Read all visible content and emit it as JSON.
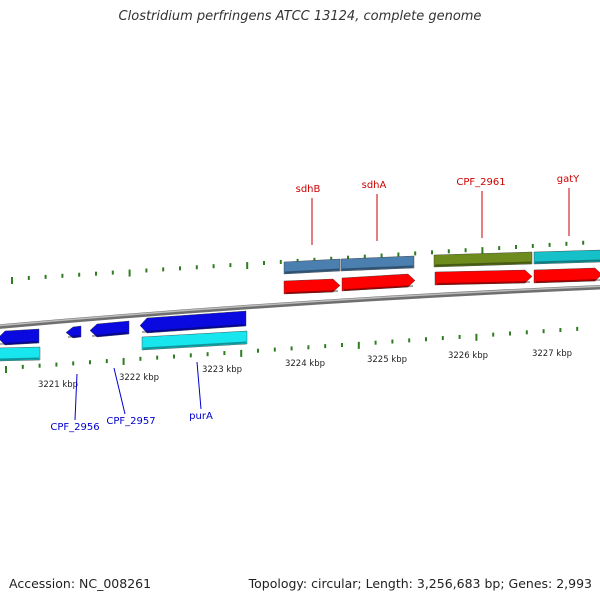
{
  "title": "Clostridium perfringens ATCC 13124, complete genome",
  "footer": {
    "accession": "Accession: NC_008261",
    "summary": "Topology: circular; Length: 3,256,683 bp; Genes: 2,993"
  },
  "colors": {
    "backbone": "#8a8a8a",
    "tick": "#2e7d1f",
    "label_forward": "#cc0000",
    "label_reverse": "#0000cc"
  },
  "position_markers": [
    "3221 kbp",
    "3222 kbp",
    "3223 kbp",
    "3224 kbp",
    "3225 kbp",
    "3226 kbp",
    "3227 kbp"
  ],
  "genes_forward": [
    {
      "name": "sdhB",
      "color": "#4a7fb0"
    },
    {
      "name": "sdhA",
      "color": "#4a7fb0"
    },
    {
      "name": "CPF_2961",
      "color": "#6e8b1e"
    },
    {
      "name": "gatY",
      "color": "#16c0c8"
    }
  ],
  "genes_reverse": [
    {
      "name": "CPF_2956",
      "color": "#0a0ae0"
    },
    {
      "name": "CPF_2957",
      "color": "#0a0ae0"
    },
    {
      "name": "purA",
      "color": "#0a0ae0"
    }
  ]
}
